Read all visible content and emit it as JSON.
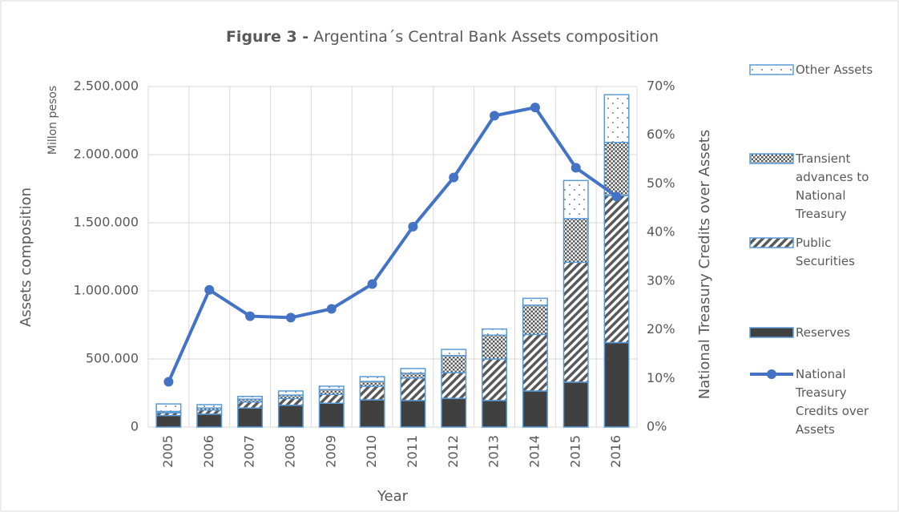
{
  "chart_data": {
    "type": "bar",
    "title_prefix": "Figure 3 -",
    "title": "Argentina´s Central Bank Assets composition",
    "y_label": "Assets composition",
    "y_unit_label": "Millon pesos",
    "x_label": "Year",
    "y2_label": "National Treasury Credits over Assets",
    "categories": [
      "2005",
      "2006",
      "2007",
      "2008",
      "2009",
      "2010",
      "2011",
      "2012",
      "2013",
      "2014",
      "2015",
      "2016"
    ],
    "stacked": true,
    "ylim": [
      0,
      2500000
    ],
    "yticks": [
      0,
      {
        "value": 500000,
        "label": "500.000"
      },
      {
        "value": 1000000,
        "label": "1.000.000"
      },
      {
        "value": 1500000,
        "label": "1.500.000"
      },
      {
        "value": 2000000,
        "label": "2.000.000"
      },
      {
        "value": 2500000,
        "label": "2.500.000"
      }
    ],
    "y2lim": [
      0,
      70
    ],
    "y2ticks": [
      {
        "value": 0,
        "label": "0%"
      },
      {
        "value": 10,
        "label": "10%"
      },
      {
        "value": 20,
        "label": "20%"
      },
      {
        "value": 30,
        "label": "30%"
      },
      {
        "value": 40,
        "label": "40%"
      },
      {
        "value": 50,
        "label": "50%"
      },
      {
        "value": 60,
        "label": "60%"
      },
      {
        "value": 70,
        "label": "70%"
      }
    ],
    "grid": true,
    "series": [
      {
        "name": "Reserves",
        "color": "#404040",
        "values": [
          85000,
          95000,
          140000,
          160000,
          175000,
          200000,
          195000,
          210000,
          195000,
          265000,
          330000,
          620000
        ]
      },
      {
        "name": "Public Securities",
        "color": "#7f7f7f",
        "values": [
          20000,
          30000,
          45000,
          50000,
          65000,
          100000,
          165000,
          190000,
          305000,
          415000,
          880000,
          1080000
        ]
      },
      {
        "name": "Transient advances to National Treasury",
        "color": "#595959",
        "values": [
          10000,
          15000,
          20000,
          25000,
          35000,
          35000,
          35000,
          125000,
          175000,
          215000,
          320000,
          390000
        ]
      },
      {
        "name": "Other Assets",
        "color": "#bfbfbf",
        "values": [
          55000,
          25000,
          20000,
          30000,
          25000,
          35000,
          35000,
          45000,
          45000,
          50000,
          280000,
          350000
        ]
      },
      {
        "name": "National Treasury Credits over Assets",
        "color": "#4472c4",
        "type": "line",
        "axis": "y2",
        "values": [
          9.3,
          28.2,
          22.8,
          22.5,
          24.3,
          29.4,
          41.2,
          51.3,
          64,
          65.7,
          53.3,
          47.4
        ]
      }
    ]
  }
}
